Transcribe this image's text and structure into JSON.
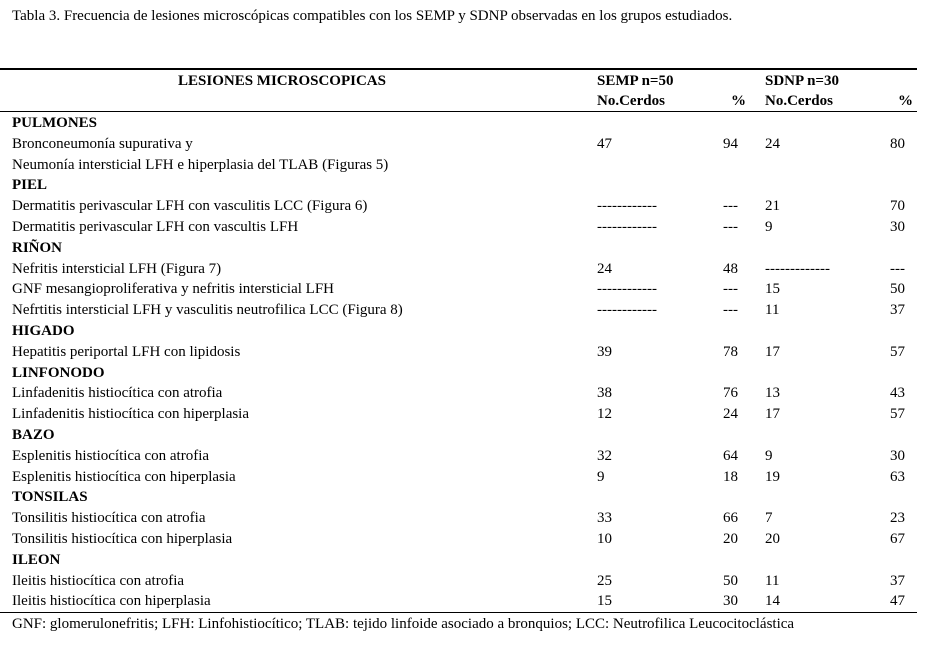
{
  "caption": "Tabla 3. Frecuencia de lesiones microscópicas compatibles con los SEMP y SDNP observadas en los grupos estudiados.",
  "header": {
    "lesions": "LESIONES MICROSCOPICAS",
    "semp": "SEMP n=50",
    "sdnp": "SDNP n=30",
    "semp_count": "No.Cerdos",
    "semp_pct": "%",
    "sdnp_count": "No.Cerdos",
    "sdnp_pct": "%"
  },
  "rows": [
    {
      "type": "section",
      "label": "PULMONES"
    },
    {
      "type": "item",
      "label": "Bronconeumonía supurativa y",
      "semp_n": "47",
      "semp_p": "94",
      "sdnp_n": "24",
      "sdnp_p": "80"
    },
    {
      "type": "item",
      "label": "Neumonía intersticial LFH e hiperplasia del TLAB (Figuras 5)"
    },
    {
      "type": "section",
      "label": "PIEL"
    },
    {
      "type": "item",
      "label": "Dermatitis perivascular LFH con vasculitis LCC (Figura 6)",
      "semp_n": "------------",
      "semp_p": "---",
      "sdnp_n": "21",
      "sdnp_p": "70"
    },
    {
      "type": "item",
      "label": "Dermatitis perivascular LFH con vascultis LFH",
      "semp_n": "------------",
      "semp_p": "---",
      "sdnp_n": "9",
      "sdnp_p": "30"
    },
    {
      "type": "section",
      "label": "RIÑON"
    },
    {
      "type": "item",
      "label": "Nefritis intersticial LFH (Figura 7)",
      "semp_n": "24",
      "semp_p": "48",
      "sdnp_n": "-------------",
      "sdnp_p": "---"
    },
    {
      "type": "item",
      "label": "GNF mesangioproliferativa y nefritis intersticial LFH",
      "semp_n": "------------",
      "semp_p": "---",
      "sdnp_n": "15",
      "sdnp_p": "50"
    },
    {
      "type": "item",
      "label": "Nefrtitis intersticial LFH y vasculitis neutrofilica LCC (Figura 8)",
      "semp_n": "------------",
      "semp_p": "---",
      "sdnp_n": "11",
      "sdnp_p": "37"
    },
    {
      "type": "section",
      "label": "HIGADO"
    },
    {
      "type": "item",
      "label": "Hepatitis periportal  LFH con lipidosis",
      "semp_n": "39",
      "semp_p": "78",
      "sdnp_n": "17",
      "sdnp_p": "57"
    },
    {
      "type": "section",
      "label": "LINFONODO"
    },
    {
      "type": "item",
      "label": "Linfadenitis histiocítica con atrofia",
      "semp_n": "38",
      "semp_p": "76",
      "sdnp_n": "13",
      "sdnp_p": "43"
    },
    {
      "type": "item",
      "label": "Linfadenitis histiocítica con hiperplasia",
      "semp_n": "12",
      "semp_p": "24",
      "sdnp_n": "17",
      "sdnp_p": "57"
    },
    {
      "type": "section",
      "label": "BAZO"
    },
    {
      "type": "item",
      "label": "Esplenitis histiocítica con atrofia",
      "semp_n": "32",
      "semp_p": "64",
      "sdnp_n": "9",
      "sdnp_p": "30"
    },
    {
      "type": "item",
      "label": "Esplenitis histiocítica con hiperplasia",
      "semp_n": "9",
      "semp_p": "18",
      "sdnp_n": "19",
      "sdnp_p": "63"
    },
    {
      "type": "section",
      "label": "TONSILAS"
    },
    {
      "type": "item",
      "label": "Tonsilitis  histiocítica con atrofia",
      "semp_n": "33",
      "semp_p": "66",
      "sdnp_n": "7",
      "sdnp_p": "23"
    },
    {
      "type": "item",
      "label": "Tonsilitis  histiocítica con hiperplasia",
      "semp_n": "10",
      "semp_p": "20",
      "sdnp_n": "20",
      "sdnp_p": "67"
    },
    {
      "type": "section",
      "label": "ILEON"
    },
    {
      "type": "item",
      "label": "Ileitis histiocítica con atrofia",
      "semp_n": "25",
      "semp_p": "50",
      "sdnp_n": "11",
      "sdnp_p": "37"
    },
    {
      "type": "item",
      "label": "Ileitis histiocítica con hiperplasia",
      "semp_n": "15",
      "semp_p": "30",
      "sdnp_n": "14",
      "sdnp_p": "47"
    }
  ],
  "footnote": "GNF: glomerulonefritis; LFH: Linfohistiocítico; TLAB: tejido linfoide asociado a bronquios; LCC: Neutrofilica Leucocitoclástica"
}
